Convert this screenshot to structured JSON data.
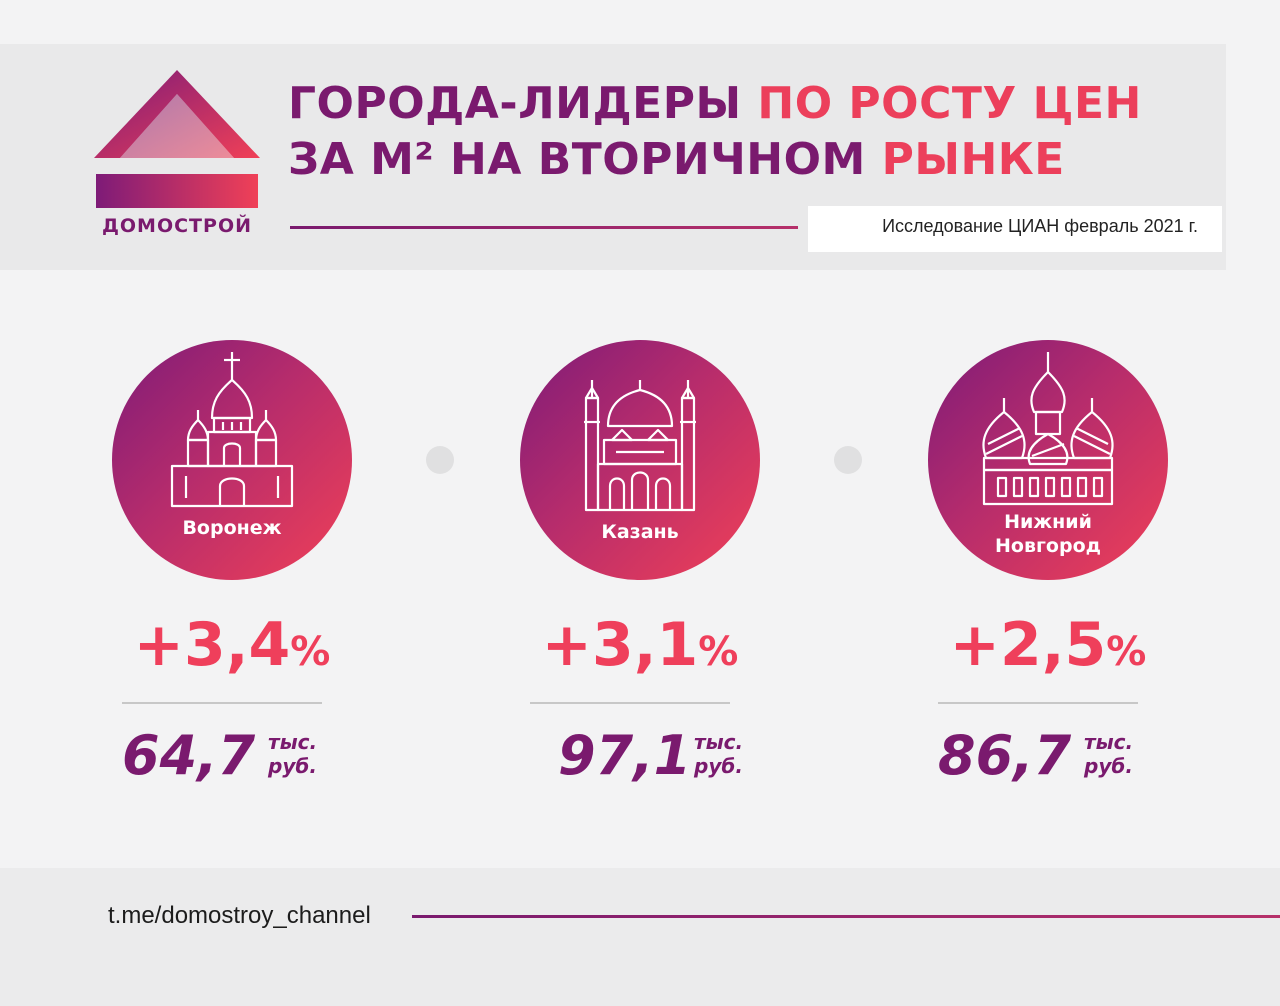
{
  "brand": {
    "name": "ДОМОСТРОЙ",
    "colors": {
      "purple": "#7a1a6e",
      "red": "#ef3f5b"
    }
  },
  "title": {
    "line1_a": "ГОРОДА-ЛИДЕРЫ ",
    "line1_b": "ПО РОСТУ ЦЕН",
    "line2_a": "ЗА М² НА ВТОРИЧНОМ ",
    "line2_b": "РЫНКЕ"
  },
  "source": "Исследование ЦИАН февраль 2021 г.",
  "cities": [
    {
      "name": "Воронеж",
      "icon": "cathedral-icon",
      "growth": "+3,4",
      "growth_unit": "%",
      "price": "64,7",
      "unit_line1": "тыс.",
      "unit_line2": "руб."
    },
    {
      "name": "Казань",
      "icon": "mosque-icon",
      "growth": "+3,1",
      "growth_unit": "%",
      "price": "97,1",
      "unit_line1": "тыс.",
      "unit_line2": "руб."
    },
    {
      "name_line1": "Нижний",
      "name_line2": "Новгород",
      "icon": "kremlin-church-icon",
      "growth": "+2,5",
      "growth_unit": "%",
      "price": "86,7",
      "unit_line1": "тыс.",
      "unit_line2": "руб."
    }
  ],
  "footer": {
    "link": "t.me/domostroy_channel"
  }
}
